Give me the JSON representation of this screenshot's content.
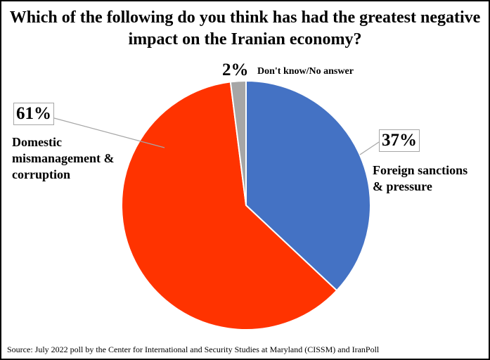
{
  "chart_data": {
    "type": "pie",
    "title": "Which of the following do you think has had the greatest negative impact on the Iranian economy?",
    "slices": [
      {
        "label": "Foreign sanctions & pressure",
        "label_lines": [
          "Foreign sanctions",
          "& pressure"
        ],
        "value": 37,
        "value_label": "37%",
        "color": "#4472C4"
      },
      {
        "label": "Domestic mismanagement & corruption",
        "label_lines": [
          "Domestic",
          "mismanagement &",
          "corruption"
        ],
        "value": 61,
        "value_label": "61%",
        "color": "#FF3300"
      },
      {
        "label": "Don't know/No answer",
        "label_lines": [
          "Don't know/No answer"
        ],
        "value": 2,
        "value_label": "2%",
        "color": "#A6A6A6"
      }
    ],
    "start_angle_deg": 0,
    "direction": "clockwise",
    "source": "Source: July 2022 poll by the Center for International and Security Studies at Maryland (CISSM) and IranPoll"
  }
}
